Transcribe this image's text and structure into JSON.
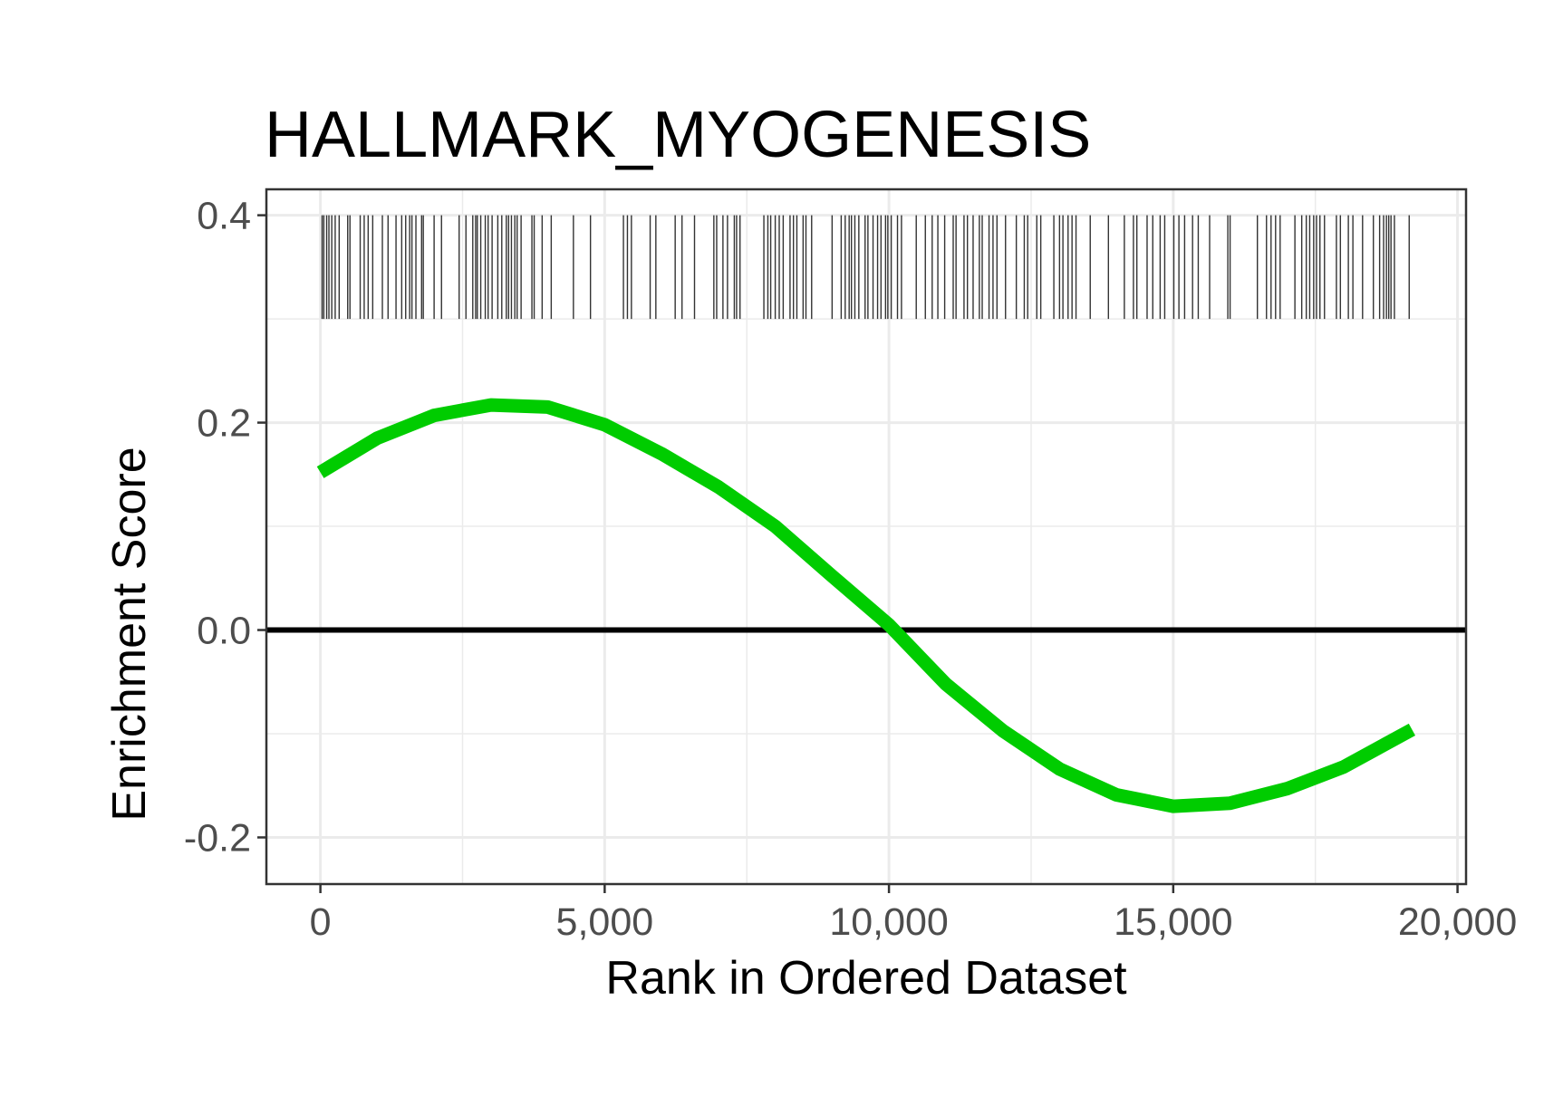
{
  "chart_data": {
    "type": "line",
    "title": "HALLMARK_MYOGENESIS",
    "xlabel": "Rank in Ordered Dataset",
    "ylabel": "Enrichment Score",
    "xlim": [
      -950,
      20150
    ],
    "ylim": [
      -0.245,
      0.425
    ],
    "x_ticks": [
      0,
      5000,
      10000,
      15000,
      20000
    ],
    "x_tick_labels": [
      "0",
      "5,000",
      "10,000",
      "15,000",
      "20,000"
    ],
    "y_ticks": [
      -0.2,
      0.0,
      0.2,
      0.4
    ],
    "y_tick_labels": [
      "-0.2",
      "0.0",
      "0.2",
      "0.4"
    ],
    "grid": true,
    "colors": {
      "curve": "#00cc00",
      "zero_line": "#000000",
      "hits": "#333333",
      "grid": "#ebebeb",
      "panel_border": "#333333"
    },
    "series": [
      {
        "x": [
          0,
          1000,
          2000,
          3000,
          4000,
          5000,
          6000,
          7000,
          8000,
          9000,
          10000,
          11000,
          12000,
          13000,
          14000,
          15000,
          16000,
          17000,
          18000,
          19200
        ],
        "y": [
          0.152,
          0.185,
          0.207,
          0.217,
          0.215,
          0.198,
          0.17,
          0.138,
          0.1,
          0.052,
          0.005,
          -0.052,
          -0.097,
          -0.134,
          -0.159,
          -0.17,
          -0.167,
          -0.153,
          -0.132,
          -0.096
        ]
      }
    ],
    "zero_line": 0.0,
    "hit_band_y": [
      0.3,
      0.4
    ],
    "hits": [
      30,
      60,
      110,
      150,
      200,
      260,
      330,
      480,
      520,
      700,
      770,
      840,
      920,
      1090,
      1190,
      1330,
      1430,
      1500,
      1570,
      1610,
      1680,
      1780,
      1810,
      2000,
      2130,
      2440,
      2560,
      2680,
      2730,
      2760,
      2820,
      2900,
      2950,
      3020,
      3120,
      3190,
      3270,
      3310,
      3360,
      3420,
      3460,
      3530,
      3720,
      3760,
      3900,
      4060,
      4450,
      4750,
      5330,
      5400,
      5470,
      5800,
      5900,
      6240,
      6360,
      6580,
      6920,
      6970,
      7080,
      7160,
      7280,
      7320,
      7380,
      7800,
      7870,
      7920,
      8000,
      8070,
      8140,
      8260,
      8320,
      8380,
      8490,
      8540,
      8640,
      9000,
      9160,
      9230,
      9300,
      9340,
      9400,
      9470,
      9580,
      9630,
      9720,
      9800,
      9860,
      9940,
      9980,
      10040,
      10150,
      10220,
      10480,
      10640,
      10760,
      10860,
      10980,
      11130,
      11180,
      11320,
      11380,
      11480,
      11590,
      11640,
      11760,
      11830,
      11900,
      12050,
      12240,
      12380,
      12440,
      12600,
      12670,
      12900,
      13000,
      13060,
      13150,
      13220,
      13290,
      13540,
      13860,
      14140,
      14300,
      14360,
      14540,
      14640,
      14770,
      14850,
      15010,
      15100,
      15200,
      15340,
      15440,
      15640,
      15960,
      16000,
      16480,
      16640,
      16720,
      16800,
      16880,
      17140,
      17260,
      17340,
      17400,
      17470,
      17520,
      17580,
      17660,
      17870,
      17940,
      18080,
      18160,
      18330,
      18520,
      18630,
      18700,
      18750,
      18790,
      18830,
      18890,
      19150
    ]
  }
}
